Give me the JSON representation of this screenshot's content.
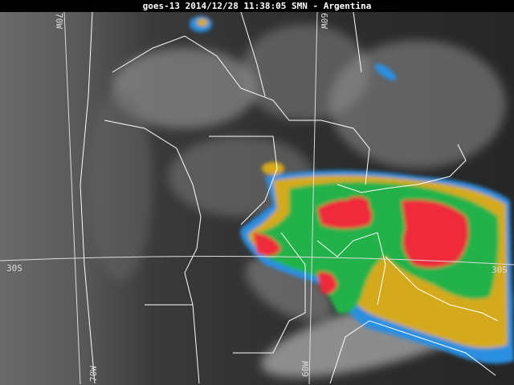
{
  "header": {
    "title": "goes-13 2014/12/28 11:38:05 SMN - Argentina"
  },
  "map": {
    "latitude_labels": {
      "left": "30S",
      "right": "30S"
    },
    "longitude_labels": {
      "top_west": "70W",
      "top_east": "60W",
      "bottom_west": "70W",
      "bottom_east": "60W"
    },
    "colors": {
      "cold_tops": "#ee2a3a",
      "very_high": "#22b24a",
      "high": "#d4aa1c",
      "mid": "#2a8fe0",
      "borders": "#ffffff"
    }
  }
}
